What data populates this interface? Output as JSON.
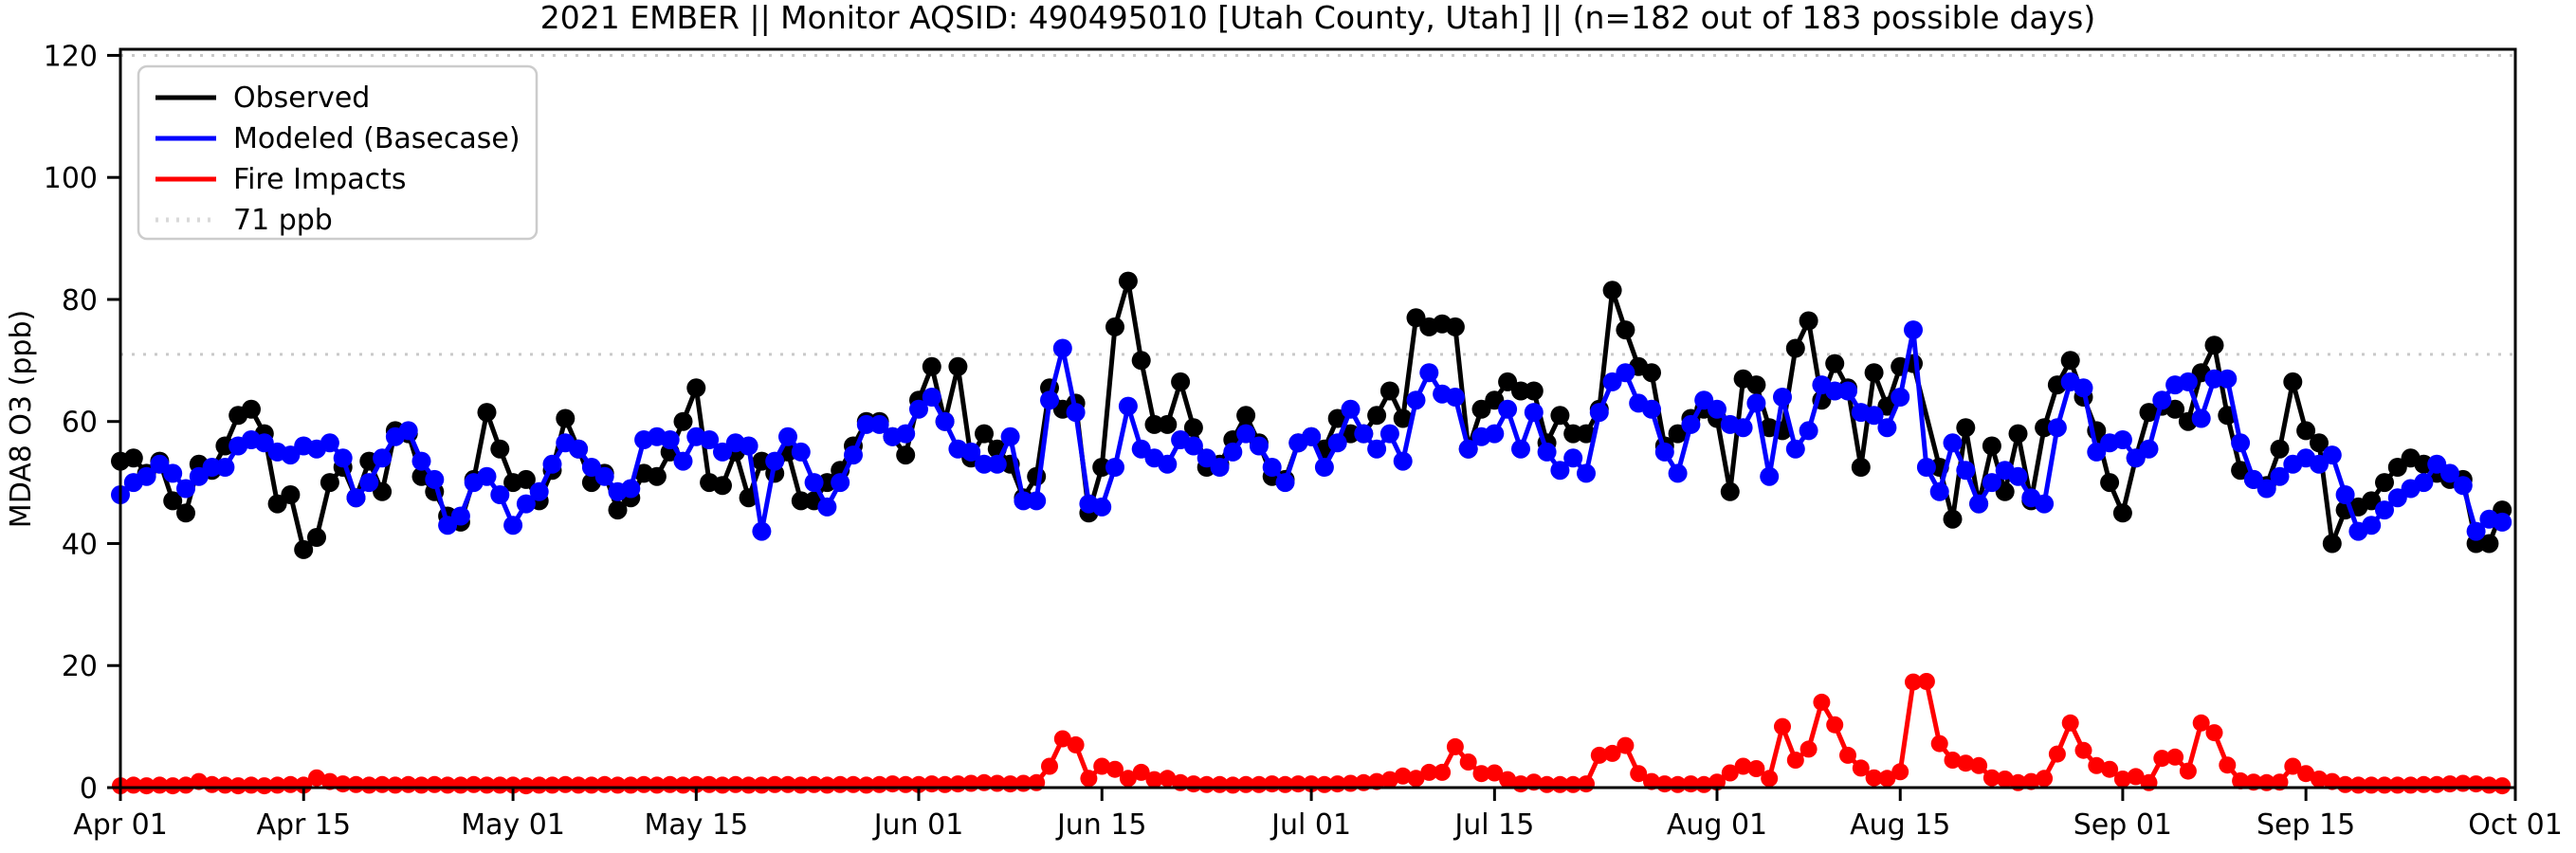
{
  "figure": {
    "title": "2021 EMBER || Monitor AQSID: 490495010 [Utah County, Utah] || (n=182 out of 183 possible days)",
    "background": "#ffffff"
  },
  "axes": {
    "ylabel": "MDA8 O3 (ppb)",
    "yticks": [
      0,
      20,
      40,
      60,
      80,
      100,
      120
    ],
    "ylim": [
      0,
      121
    ],
    "xticks": [
      {
        "label": "Apr 01",
        "day": 0
      },
      {
        "label": "Apr 15",
        "day": 14
      },
      {
        "label": "May 01",
        "day": 30
      },
      {
        "label": "May 15",
        "day": 44
      },
      {
        "label": "Jun 01",
        "day": 61
      },
      {
        "label": "Jun 15",
        "day": 75
      },
      {
        "label": "Jul 01",
        "day": 91
      },
      {
        "label": "Jul 15",
        "day": 105
      },
      {
        "label": "Aug 01",
        "day": 122
      },
      {
        "label": "Aug 15",
        "day": 136
      },
      {
        "label": "Sep 01",
        "day": 153
      },
      {
        "label": "Sep 15",
        "day": 167
      },
      {
        "label": "Oct 01",
        "day": 183
      }
    ],
    "total_days": 183,
    "spine_color": "#000000",
    "dotted_line_color": "#c9c9c9"
  },
  "legend": {
    "items": [
      {
        "label": "Observed",
        "color": "#000000",
        "style": "solid"
      },
      {
        "label": "Modeled (Basecase)",
        "color": "#0000ff",
        "style": "solid"
      },
      {
        "label": "Fire Impacts",
        "color": "#ff0000",
        "style": "solid"
      },
      {
        "label": "71 ppb",
        "color": "#d9d9d9",
        "style": "dotted"
      }
    ]
  },
  "chart_data": {
    "type": "line",
    "title": "2021 EMBER || Monitor AQSID: 490495010 [Utah County, Utah] || (n=182 out of 183 possible days)",
    "xlabel": "",
    "ylabel": "MDA8 O3 (ppb)",
    "x_start_date": "Apr 01",
    "x_end_date": "Oct 01",
    "x_unit": "day index from Apr 01",
    "ylim": [
      0,
      121
    ],
    "grid": false,
    "legend_position": "upper left",
    "threshold": {
      "label": "71 ppb",
      "value": 71
    },
    "upper_dotted_value": 120,
    "missing_observed_day_index": 138,
    "series": [
      {
        "name": "Observed",
        "color": "#000000",
        "marker": "circle",
        "values": [
          53.5,
          54,
          51.5,
          53.5,
          47,
          45,
          53,
          52,
          56,
          61,
          62,
          58,
          46.5,
          48,
          39,
          41,
          50,
          52.5,
          47.5,
          53.5,
          48.5,
          58.5,
          58,
          51,
          48.5,
          44.5,
          43.5,
          50.5,
          61.5,
          55.5,
          50,
          50.5,
          47,
          52,
          60.5,
          55.5,
          50,
          51.5,
          45.5,
          47.5,
          51.5,
          51,
          55,
          60,
          65.5,
          50,
          49.5,
          55,
          47.5,
          53.5,
          51.5,
          55,
          47,
          47,
          50,
          52,
          56,
          60,
          60,
          57.5,
          54.5,
          63.5,
          69,
          60,
          69,
          54,
          58,
          55.5,
          53,
          47.5,
          51,
          65.5,
          62,
          63,
          45,
          52.5,
          75.5,
          83,
          70,
          59.5,
          59.5,
          66.5,
          59,
          52.5,
          53,
          57,
          61,
          56.5,
          51,
          50.5,
          56.5,
          57.5,
          55.5,
          60.5,
          58,
          58,
          61,
          65,
          60.5,
          77,
          75.5,
          76,
          75.5,
          55.5,
          62,
          63.5,
          66.5,
          65,
          65,
          56.5,
          61,
          58,
          58,
          62,
          81.5,
          75,
          69,
          68,
          56,
          58,
          60.5,
          62,
          60.5,
          48.5,
          67,
          66,
          59,
          58.5,
          72,
          76.5,
          63.5,
          69.5,
          65.5,
          52.5,
          68,
          62.5,
          69,
          69.5,
          null,
          52.5,
          44,
          59,
          46.5,
          56,
          48.5,
          58,
          47,
          59,
          66,
          70,
          64,
          58.5,
          50,
          45,
          54,
          61.5,
          62.5,
          62,
          60,
          68,
          72.5,
          61,
          52,
          50.5,
          49.5,
          55.5,
          66.5,
          58.5,
          56.5,
          40,
          45.5,
          46,
          47,
          50,
          52.5,
          54,
          53,
          51.5,
          50.5,
          50.5,
          40,
          40,
          45.5
        ]
      },
      {
        "name": "Modeled (Basecase)",
        "color": "#0000ff",
        "marker": "circle",
        "values": [
          48,
          50,
          51,
          53,
          51.5,
          49,
          51,
          52.5,
          52.5,
          56,
          57,
          56.5,
          55,
          54.5,
          56,
          55.5,
          56.5,
          54,
          47.5,
          50,
          54,
          57.5,
          58.5,
          53.5,
          50.5,
          43,
          44.5,
          50,
          51,
          48,
          43,
          46.5,
          48.5,
          53,
          56.5,
          55.5,
          52.5,
          51,
          48.5,
          49,
          57,
          57.5,
          57,
          53.5,
          57.5,
          57,
          55,
          56.5,
          56,
          42,
          53.5,
          57.5,
          55,
          50,
          46,
          50,
          54.5,
          59.5,
          59.5,
          57.5,
          58,
          62,
          64,
          60,
          55.5,
          55,
          53,
          53,
          57.5,
          47,
          47,
          63.5,
          72,
          61.5,
          46.5,
          46,
          52.5,
          62.5,
          55.5,
          54,
          53,
          57,
          56,
          54,
          52.5,
          55,
          58,
          56,
          52.5,
          50,
          56.5,
          57.5,
          52.5,
          56.5,
          62,
          58,
          55.5,
          58,
          53.5,
          63.5,
          68,
          64.5,
          64,
          55.5,
          57.5,
          58,
          62,
          55.5,
          61.5,
          55,
          52,
          54,
          51.5,
          61.5,
          66.5,
          68,
          63,
          62,
          55,
          51.5,
          59.5,
          63.5,
          62,
          59.5,
          59,
          63,
          51,
          64,
          55.5,
          58.5,
          66,
          65,
          65,
          61.5,
          61,
          59,
          64,
          75,
          52.5,
          48.5,
          56.5,
          52,
          46.5,
          50,
          52,
          51,
          47.5,
          46.5,
          59,
          66.5,
          65.5,
          55,
          56.5,
          57,
          54,
          55.5,
          63.5,
          66,
          66.5,
          60.5,
          67,
          67,
          56.5,
          50.5,
          49,
          51,
          53,
          54,
          53,
          54.5,
          48,
          42,
          43,
          45.5,
          47.5,
          49,
          50,
          53,
          51.5,
          49.5,
          42,
          44,
          43.5
        ]
      },
      {
        "name": "Fire Impacts",
        "color": "#ff0000",
        "marker": "circle",
        "values": [
          0.3,
          0.4,
          0.3,
          0.4,
          0.3,
          0.4,
          1.0,
          0.5,
          0.4,
          0.3,
          0.4,
          0.3,
          0.4,
          0.5,
          0.4,
          1.6,
          1.0,
          0.6,
          0.5,
          0.4,
          0.5,
          0.4,
          0.5,
          0.4,
          0.5,
          0.4,
          0.4,
          0.5,
          0.4,
          0.4,
          0.4,
          0.3,
          0.4,
          0.4,
          0.5,
          0.4,
          0.4,
          0.5,
          0.4,
          0.4,
          0.5,
          0.4,
          0.5,
          0.4,
          0.5,
          0.5,
          0.4,
          0.5,
          0.4,
          0.4,
          0.5,
          0.5,
          0.4,
          0.5,
          0.4,
          0.5,
          0.5,
          0.4,
          0.5,
          0.6,
          0.5,
          0.5,
          0.6,
          0.5,
          0.6,
          0.7,
          0.8,
          0.7,
          0.6,
          0.7,
          0.8,
          3.5,
          8,
          7,
          1.5,
          3.5,
          3,
          1.5,
          2.5,
          1.3,
          1.5,
          0.8,
          0.6,
          0.5,
          0.5,
          0.4,
          0.5,
          0.5,
          0.6,
          0.5,
          0.6,
          0.6,
          0.5,
          0.6,
          0.7,
          0.8,
          1.0,
          1.3,
          1.9,
          1.5,
          2.5,
          2.5,
          6.7,
          4.2,
          2.3,
          2.4,
          1.3,
          0.6,
          0.9,
          0.5,
          0.5,
          0.5,
          0.6,
          5.3,
          5.6,
          6.9,
          2.3,
          1.0,
          0.6,
          0.5,
          0.6,
          0.5,
          0.9,
          2.4,
          3.5,
          3.1,
          1.5,
          10,
          4.5,
          6.3,
          14,
          10.3,
          5.3,
          3.2,
          1.6,
          1.5,
          2.6,
          17.3,
          17.4,
          7.2,
          4.5,
          4.0,
          3.6,
          1.6,
          1.4,
          0.8,
          1.0,
          1.5,
          5.5,
          10.6,
          6.1,
          3.6,
          3.0,
          1.4,
          1.8,
          0.8,
          4.8,
          5.0,
          2.7,
          10.6,
          9.0,
          3.7,
          1.1,
          0.9,
          0.8,
          0.9,
          3.5,
          2.3,
          1.4,
          1.0,
          0.5,
          0.4,
          0.4,
          0.4,
          0.4,
          0.4,
          0.5,
          0.5,
          0.6,
          0.7,
          0.6,
          0.4,
          0.3
        ]
      }
    ]
  }
}
